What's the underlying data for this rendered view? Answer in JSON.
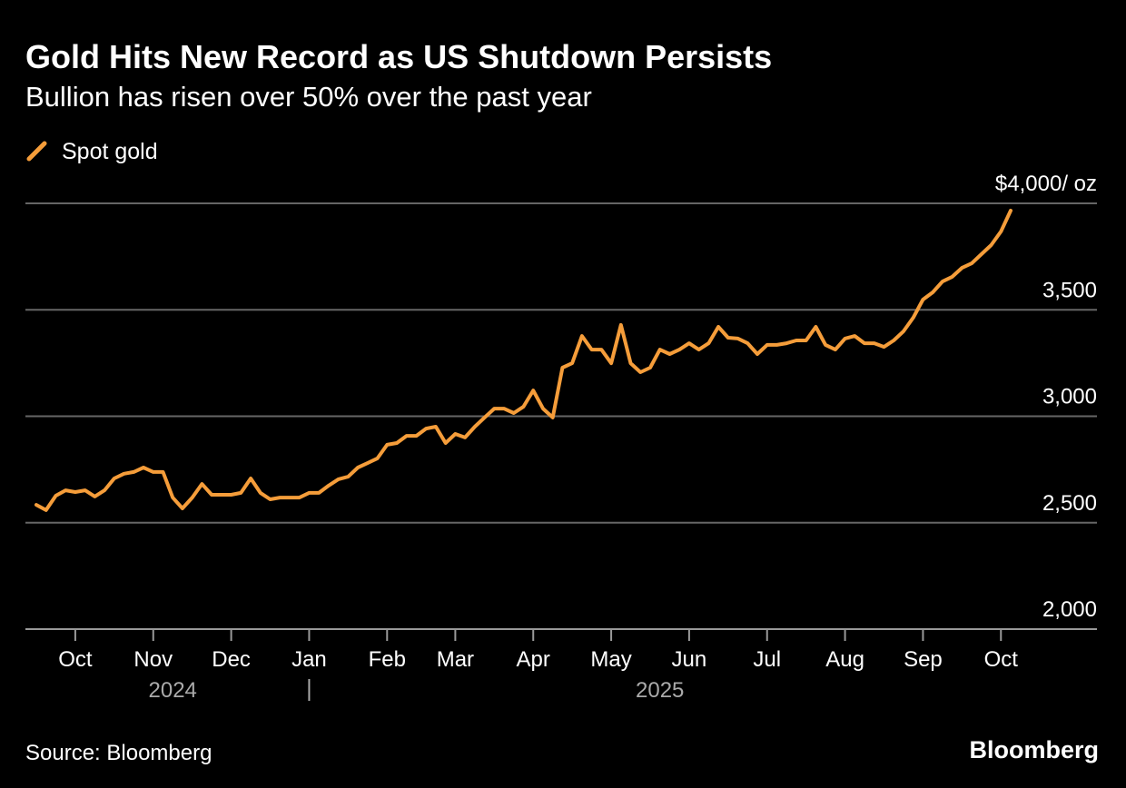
{
  "chart_data": {
    "type": "line",
    "title": "Gold Hits New Record as US Shutdown Persists",
    "subtitle": "Bullion has risen over 50% over the past year",
    "source": "Source: Bloomberg",
    "brand": "Bloomberg",
    "years": [
      "2024",
      "2025"
    ],
    "categories": [
      null,
      null,
      null,
      null,
      "Oct",
      null,
      null,
      null,
      null,
      null,
      null,
      null,
      "Nov",
      null,
      null,
      null,
      null,
      null,
      null,
      null,
      "Dec",
      null,
      null,
      null,
      null,
      null,
      null,
      null,
      "Jan",
      null,
      null,
      null,
      null,
      null,
      null,
      null,
      "Feb",
      null,
      null,
      null,
      null,
      null,
      null,
      "Mar",
      null,
      null,
      null,
      null,
      null,
      null,
      null,
      "Apr",
      null,
      null,
      null,
      null,
      null,
      null,
      null,
      "May",
      null,
      null,
      null,
      null,
      null,
      null,
      null,
      "Jun",
      null,
      null,
      null,
      null,
      null,
      null,
      null,
      "Jul",
      null,
      null,
      null,
      null,
      null,
      null,
      null,
      "Aug",
      null,
      null,
      null,
      null,
      null,
      null,
      null,
      "Sep",
      null,
      null,
      null,
      null,
      null,
      null,
      null,
      "Oct",
      null
    ],
    "series": [
      {
        "name": "Spot gold",
        "color": "#f59d3a",
        "values": [
          2584,
          2559,
          2627,
          2652,
          2644,
          2652,
          2623,
          2652,
          2708,
          2730,
          2738,
          2759,
          2738,
          2738,
          2618,
          2567,
          2618,
          2682,
          2631,
          2631,
          2631,
          2640,
          2708,
          2640,
          2610,
          2618,
          2618,
          2618,
          2640,
          2640,
          2674,
          2704,
          2716,
          2759,
          2780,
          2802,
          2866,
          2874,
          2908,
          2908,
          2942,
          2951,
          2874,
          2917,
          2900,
          2951,
          2994,
          3036,
          3036,
          3015,
          3045,
          3121,
          3036,
          2994,
          3228,
          3249,
          3377,
          3313,
          3313,
          3249,
          3429,
          3249,
          3207,
          3228,
          3313,
          3292,
          3313,
          3343,
          3313,
          3343,
          3420,
          3369,
          3365,
          3343,
          3292,
          3335,
          3335,
          3343,
          3356,
          3356,
          3420,
          3335,
          3313,
          3365,
          3377,
          3343,
          3343,
          3326,
          3356,
          3399,
          3463,
          3548,
          3582,
          3633,
          3655,
          3697,
          3718,
          3761,
          3804,
          3868,
          3966
        ]
      }
    ],
    "ylim": [
      2000,
      4000
    ],
    "yticks": [
      {
        "value": 2000,
        "label": "2,000"
      },
      {
        "value": 2500,
        "label": "2,500"
      },
      {
        "value": 3000,
        "label": "3,000"
      },
      {
        "value": 3500,
        "label": "3,500"
      },
      {
        "value": 4000,
        "label": "$4,000/ oz"
      }
    ],
    "grid": true
  }
}
